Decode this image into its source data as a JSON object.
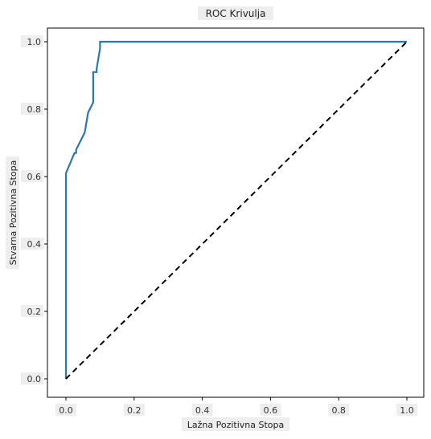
{
  "chart_data": {
    "type": "line",
    "title": "ROC Krivulja",
    "xlabel": "Lažna Pozitivna Stopa",
    "ylabel": "Stvarna Pozitivna Stopa",
    "xlim": [
      0.0,
      1.0
    ],
    "ylim": [
      0.0,
      1.0
    ],
    "x_ticks": [
      "0.0",
      "0.2",
      "0.4",
      "0.6",
      "0.8",
      "1.0"
    ],
    "y_ticks": [
      "0.0",
      "0.2",
      "0.4",
      "0.6",
      "0.8",
      "1.0"
    ],
    "grid": false,
    "series": [
      {
        "color": "#2a77b4",
        "style": "solid",
        "x": [
          0.0,
          0.0,
          0.0,
          0.0,
          0.025,
          0.025,
          0.03,
          0.03,
          0.055,
          0.065,
          0.08,
          0.08,
          0.09,
          0.09,
          0.1,
          0.1,
          0.14,
          0.2,
          0.4,
          0.6,
          0.8,
          1.0
        ],
        "y": [
          0.0,
          0.2,
          0.4,
          0.61,
          0.67,
          0.67,
          0.67,
          0.68,
          0.73,
          0.79,
          0.82,
          0.91,
          0.91,
          0.92,
          0.98,
          1.0,
          1.0,
          1.0,
          1.0,
          1.0,
          1.0,
          1.0
        ]
      },
      {
        "color": "#000000",
        "style": "dashed",
        "x": [
          0.0,
          1.0
        ],
        "y": [
          0.0,
          1.0
        ]
      }
    ]
  }
}
